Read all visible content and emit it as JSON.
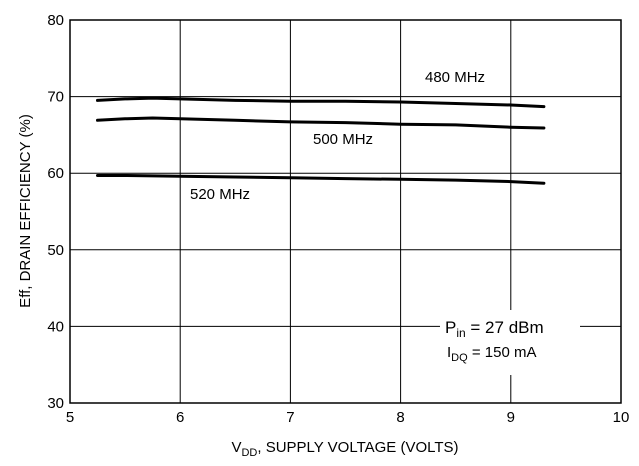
{
  "chart_data": {
    "type": "line",
    "xlabel": {
      "main": "V",
      "sub": "DD",
      "rest": ", SUPPLY VOLTAGE (VOLTS)"
    },
    "ylabel": "Eff, DRAIN EFFICIENCY (%)",
    "xlim": [
      5,
      10
    ],
    "ylim": [
      30,
      80
    ],
    "xticks": [
      "5",
      "6",
      "7",
      "8",
      "9",
      "10"
    ],
    "yticks": [
      "30",
      "40",
      "50",
      "60",
      "70",
      "80"
    ],
    "grid": true,
    "series": [
      {
        "name": "480 MHz",
        "x": [
          5.25,
          5.5,
          5.75,
          6.0,
          6.5,
          7.0,
          7.5,
          8.0,
          8.5,
          9.0,
          9.3
        ],
        "y": [
          69.5,
          69.7,
          69.8,
          69.7,
          69.5,
          69.4,
          69.4,
          69.3,
          69.1,
          68.9,
          68.7
        ]
      },
      {
        "name": "500 MHz",
        "x": [
          5.25,
          5.5,
          5.75,
          6.0,
          6.5,
          7.0,
          7.5,
          8.0,
          8.5,
          9.0,
          9.3
        ],
        "y": [
          66.9,
          67.1,
          67.2,
          67.1,
          66.9,
          66.7,
          66.6,
          66.4,
          66.3,
          66.0,
          65.9
        ]
      },
      {
        "name": "520 MHz",
        "x": [
          5.25,
          5.5,
          6.0,
          6.5,
          7.0,
          7.5,
          8.0,
          8.5,
          9.0,
          9.3
        ],
        "y": [
          59.7,
          59.7,
          59.6,
          59.5,
          59.4,
          59.3,
          59.2,
          59.1,
          58.9,
          58.7
        ]
      }
    ],
    "annotations": {
      "pin": {
        "main": "P",
        "sub": "in",
        "rest": " = 27 dBm"
      },
      "idq": {
        "main": "I",
        "sub": "DQ",
        "rest": " = 150 mA"
      }
    }
  }
}
